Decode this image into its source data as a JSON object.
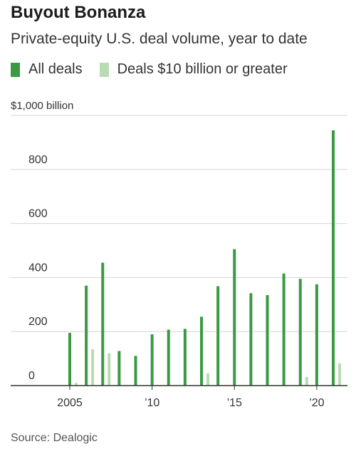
{
  "title": "Buyout Bonanza",
  "subtitle": "Private-equity U.S. deal volume, year to date",
  "source": "Source: Dealogic",
  "legend": [
    {
      "label": "All deals",
      "color": "#3a9a43"
    },
    {
      "label": "Deals $10 billion or greater",
      "color": "#b8dcb2"
    }
  ],
  "chart_data": {
    "type": "bar",
    "title": "Buyout Bonanza",
    "subtitle": "Private-equity U.S. deal volume, year to date",
    "ylabel": "$1,000 billion",
    "xlabel": "",
    "ylim": [
      0,
      1000
    ],
    "y_ticks": [
      {
        "value": 1000,
        "label": "$1,000 billion"
      },
      {
        "value": 800,
        "label": "800"
      },
      {
        "value": 600,
        "label": "600"
      },
      {
        "value": 400,
        "label": "400"
      },
      {
        "value": 200,
        "label": "200"
      },
      {
        "value": 0,
        "label": "0"
      }
    ],
    "x_ticks": [
      {
        "year": 2005,
        "label": "2005"
      },
      {
        "year": 2010,
        "label": "’10"
      },
      {
        "year": 2015,
        "label": "’15"
      },
      {
        "year": 2020,
        "label": "’20"
      }
    ],
    "categories": [
      2005,
      2006,
      2007,
      2008,
      2009,
      2010,
      2011,
      2012,
      2013,
      2014,
      2015,
      2016,
      2017,
      2018,
      2019,
      2020,
      2021
    ],
    "series": [
      {
        "name": "All deals",
        "color": "#3a9a43",
        "values": [
          195,
          370,
          455,
          128,
          110,
          190,
          207,
          210,
          255,
          368,
          505,
          342,
          335,
          415,
          395,
          375,
          945
        ]
      },
      {
        "name": "Deals $10 billion or greater",
        "color": "#b8dcb2",
        "values": [
          10,
          135,
          120,
          0,
          0,
          0,
          0,
          0,
          45,
          0,
          0,
          0,
          0,
          0,
          32,
          0,
          82
        ]
      }
    ],
    "grid": true,
    "legend_position": "top-left"
  }
}
